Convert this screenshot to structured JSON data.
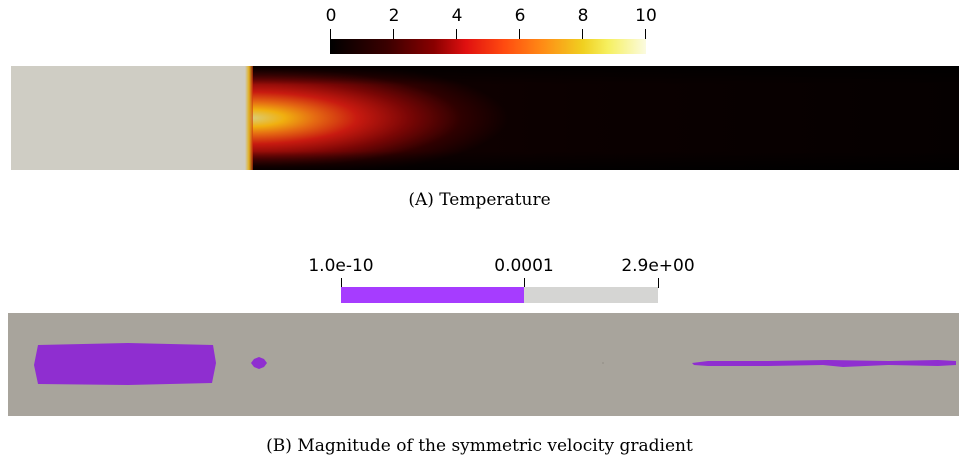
{
  "panel_a": {
    "colorbar": {
      "ticks": [
        "0",
        "2",
        "4",
        "6",
        "8",
        "10"
      ],
      "range": [
        0,
        10
      ],
      "colormap": "black-body (black → red → orange → yellow → white)"
    },
    "caption_label": "(A)",
    "caption_text": "Temperature",
    "colors": {
      "inlet": "#cfcdc4",
      "hot": "#f0b010",
      "cold": "#0b0000"
    }
  },
  "panel_b": {
    "colorbar": {
      "ticks": [
        "1.0e-10",
        "0.0001",
        "2.9e+00"
      ],
      "colors": [
        "#a63cff",
        "#d5d5d3"
      ]
    },
    "caption_label": "(B)",
    "caption_text": "Magnitude of the symmetric velocity gradient",
    "colors": {
      "background": "#a8a49c",
      "region": "#8f2ed0"
    }
  }
}
